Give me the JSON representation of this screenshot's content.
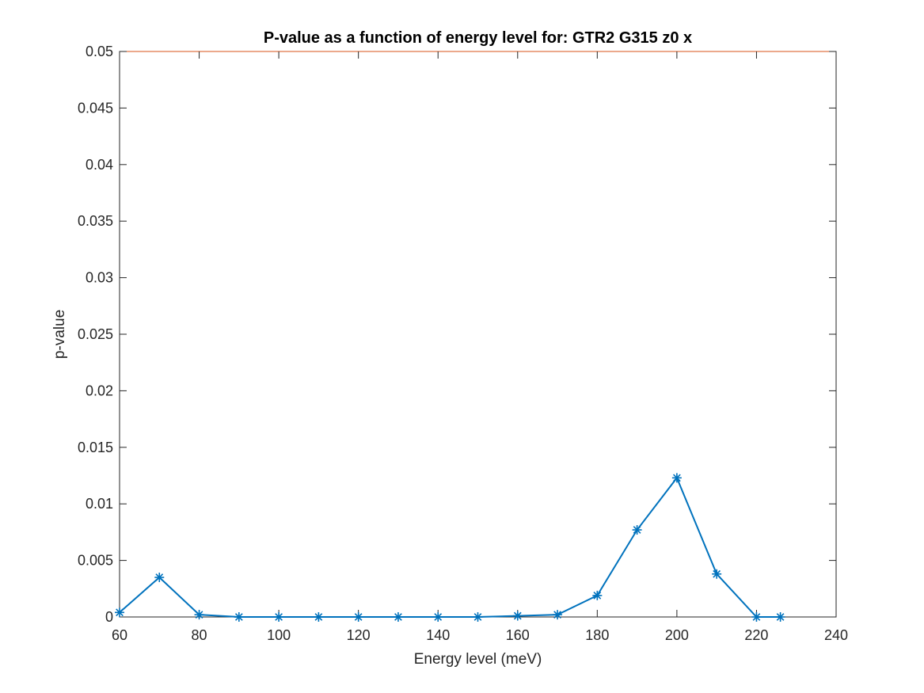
{
  "chart_data": {
    "type": "line",
    "title": "P-value as a function of energy level for: GTR2 G315 z0 x",
    "xlabel": "Energy level (meV)",
    "ylabel": "p-value",
    "xlim": [
      60,
      240
    ],
    "ylim": [
      0,
      0.05
    ],
    "xticks": [
      60,
      80,
      100,
      120,
      140,
      160,
      180,
      200,
      220,
      240
    ],
    "xtick_labels": [
      "60",
      "80",
      "100",
      "120",
      "140",
      "160",
      "180",
      "200",
      "220",
      "240"
    ],
    "yticks": [
      0,
      0.005,
      0.01,
      0.015,
      0.02,
      0.025,
      0.03,
      0.035,
      0.04,
      0.045,
      0.05
    ],
    "ytick_labels": [
      "0",
      "0.005",
      "0.01",
      "0.015",
      "0.02",
      "0.025",
      "0.03",
      "0.035",
      "0.04",
      "0.045",
      "0.05"
    ],
    "grid": false,
    "marker": "asterisk",
    "series": [
      {
        "color": "#0072BD",
        "x": [
          60,
          70,
          80,
          90,
          100,
          110,
          120,
          130,
          140,
          150,
          160,
          170,
          180,
          190,
          200,
          210,
          220,
          226
        ],
        "y": [
          0.0004,
          0.0035,
          0.0002,
          0.0,
          0.0,
          0.0,
          0.0,
          0.0,
          0.0,
          0.0,
          0.0001,
          0.0002,
          0.0019,
          0.0077,
          0.0123,
          0.0038,
          0.0,
          0.0
        ]
      }
    ],
    "threshold_line": {
      "y": 0.05,
      "color": "#D95319"
    }
  }
}
